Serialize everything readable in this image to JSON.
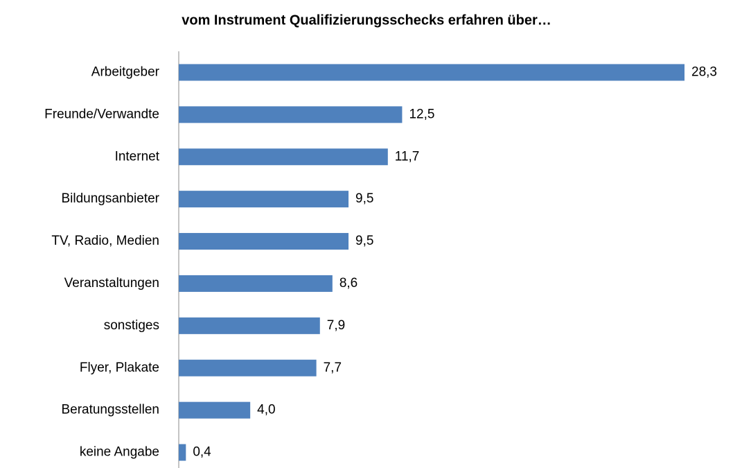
{
  "chart_data": {
    "type": "bar",
    "orientation": "horizontal",
    "title": "vom Instrument Qualifizierungsschecks erfahren über…",
    "categories": [
      "Arbeitgeber",
      "Freunde/Verwandte",
      "Internet",
      "Bildungsanbieter",
      "TV, Radio, Medien",
      "Veranstaltungen",
      "sonstiges",
      "Flyer, Plakate",
      "Beratungsstellen",
      "keine Angabe"
    ],
    "values": [
      28.3,
      12.5,
      11.7,
      9.5,
      9.5,
      8.6,
      7.9,
      7.7,
      4.0,
      0.4
    ],
    "value_labels": [
      "28,3",
      "12,5",
      "11,7",
      "9,5",
      "9,5",
      "8,6",
      "7,9",
      "7,7",
      "4,0",
      "0,4"
    ],
    "color": "#4f81bd"
  }
}
